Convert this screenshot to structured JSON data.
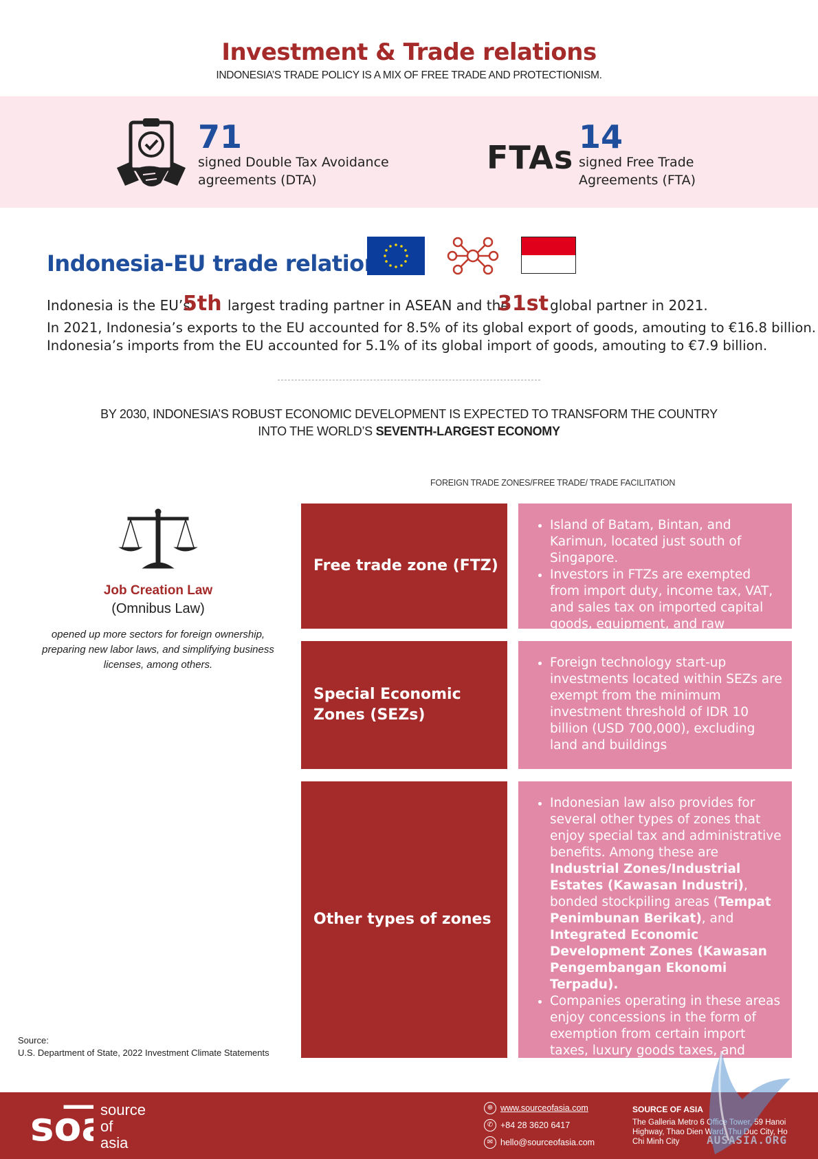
{
  "header": {
    "title": "Investment & Trade relations",
    "subtitle": "INDONESIA’S TRADE POLICY IS A MIX OF FREE TRADE AND PROTECTIONISM."
  },
  "stats": {
    "dta_number": "71",
    "dta_line1": "signed Double Tax Avoidance",
    "dta_line2": "agreements (DTA)",
    "fta_label": "FTAs",
    "fta_number": "14",
    "fta_line1": "signed Free Trade",
    "fta_line2": "Agreements (FTA)"
  },
  "eu_relations": {
    "heading": "Indonesia-EU trade relations",
    "line1_a": "Indonesia is the EU’s",
    "rank_asean": "5th",
    "line1_b": "largest trading partner in  ASEAN and the",
    "rank_global": "31st",
    "line1_c": "global partner in 2021.",
    "line2": "In 2021, Indonesia’s exports to the EU accounted for 8.5% of its global export of goods, amouting to €16.8 billion.",
    "line3": "Indonesia’s imports from the EU accounted for 5.1% of its global import of goods, amouting to €7.9 billion."
  },
  "forecast": {
    "line1": "BY 2030, INDONESIA’S ROBUST ECONOMIC DEVELOPMENT IS EXPECTED TO TRANSFORM THE COUNTRY",
    "line2_prefix": "INTO THE WORLD’S ",
    "line2_bold": "SEVENTH-LARGEST ECONOMY"
  },
  "zones": {
    "header": "FOREIGN TRADE ZONES/FREE TRADE/ TRADE FACILITATION",
    "ftz": {
      "label": "Free trade zone (FTZ)",
      "bullet1": "Island of Batam, Bintan, and Karimun, located just south of Singapore.",
      "bullet2": "Investors in FTZs are exempted from import duty, income tax, VAT, and sales tax on imported capital goods, equipment, and raw materials."
    },
    "sez": {
      "label": "Special Economic Zones (SEZs)",
      "bullet1": "Foreign technology start-up investments located within SEZs are exempt from the minimum investment threshold of IDR 10 billion (USD 700,000), excluding land and buildings"
    },
    "other": {
      "label": "Other types of zones",
      "b1_t1": "Indonesian law also provides for several other types of zones that enjoy special tax and administrative benefits. Among these are ",
      "b1_s1": "Industrial Zones/Industrial Estates (Kawasan Industri)",
      "b1_t2": ", bonded stockpiling areas (",
      "b1_s2": "Tempat Penimbunan Berikat)",
      "b1_t3": ", and ",
      "b1_s3": "Integrated Economic Development Zones (Kawasan Pengembangan Ekonomi Terpadu).",
      "bullet2": "Companies operating in these areas enjoy concessions in the form of exemption from certain import taxes, luxury goods taxes, and value-added taxes, based on a variety of criteria for each type of location."
    }
  },
  "law": {
    "title": "Job Creation Law",
    "subtitle": "(Omnibus Law)",
    "description": "opened up more sectors for foreign ownership, preparing new labor laws, and simplifying business licenses, among others."
  },
  "source": {
    "label": "Source:",
    "text": "U.S. Department of State, 2022 Investment Climate Statements"
  },
  "footer": {
    "logo_mark": "so͞a",
    "logo_line1": "source",
    "logo_line2": "of",
    "logo_line3": "asia",
    "website": "www.sourceofasia.com",
    "phone": "+84 28 3620 6417",
    "email": "hello@sourceofasia.com",
    "office_title": "SOURCE OF ASIA",
    "office_address": "The Galleria Metro 6 Office Tower, 59 Hanoi Highway, Thao Dien Ward, Thu Duc City, Ho Chi Minh City",
    "watermark": "AUSASIA.ORG"
  },
  "colors": {
    "brand_red": "#a52a2a",
    "brand_blue": "#1f4e9c",
    "band_pink": "#fbe7ec",
    "zone_pink": "#e289a7"
  }
}
